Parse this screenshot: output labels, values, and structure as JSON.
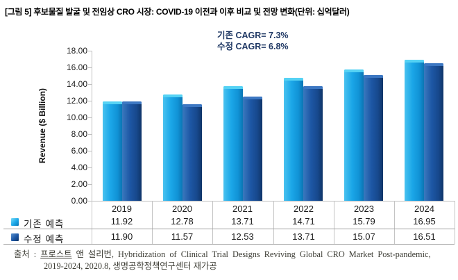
{
  "title": "[그림 5] 후보물질 발굴 및 전임상 CRO 시장: COVID-19 이전과 이후 비교 및 전망 변화(단위: 십억달러)",
  "annotation": {
    "line1": "기존 CAGR= 7.3%",
    "line2": "수정 CAGR= 6.8%",
    "color": "#1F3864"
  },
  "chart_data": {
    "type": "bar",
    "title": "",
    "categories": [
      "2019",
      "2020",
      "2021",
      "2022",
      "2023",
      "2024"
    ],
    "series": [
      {
        "name": "기존 예측",
        "values": [
          11.92,
          12.78,
          13.71,
          14.71,
          15.79,
          16.95
        ],
        "color": "#1BA7E8"
      },
      {
        "name": "수정 예측",
        "values": [
          11.9,
          11.57,
          12.53,
          13.71,
          15.07,
          16.51
        ],
        "color": "#1D57A5"
      }
    ],
    "xlabel": "",
    "ylabel": "Revenue ($ Billion)",
    "ylim": [
      0,
      18
    ],
    "ytick_step": 2,
    "ytick_labels": [
      "0.00",
      "2.00",
      "4.00",
      "6.00",
      "8.00",
      "10.00",
      "12.00",
      "14.00",
      "16.00",
      "18.00"
    ],
    "grid": false,
    "legend_position": "bottom-left data table"
  },
  "source": {
    "prefix": "출처 : ",
    "underlined": "프로스트",
    "rest": " 앤 설리번, Hybridization of Clinical Trial Designs Reviving Global CRO Market Post-pandemic,",
    "line2": "2019-2024, 2020.8, 생명공학정책연구센터 재가공"
  }
}
